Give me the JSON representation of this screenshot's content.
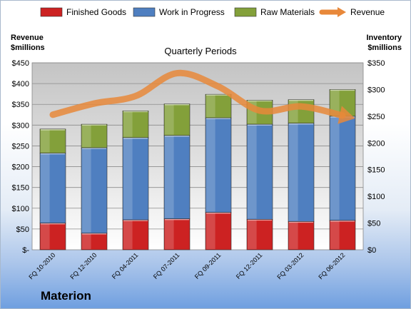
{
  "company": "Materion",
  "chart_data": {
    "type": "bar",
    "stacked": true,
    "subtitle": "Quarterly Periods",
    "y_left_label": [
      "Revenue",
      "$millions"
    ],
    "y_right_label": [
      "Inventory",
      "$millions"
    ],
    "categories": [
      "FQ 10-2010",
      "FQ 12-2010",
      "FQ 04-2011",
      "FQ 07-2011",
      "FQ 09-2011",
      "FQ 12-2011",
      "FQ 03-2012",
      "FQ 06-2012"
    ],
    "series": [
      {
        "name": "Finished Goods",
        "axis": "right",
        "color": "#cc2222",
        "values": [
          50,
          31,
          56,
          58,
          70,
          57,
          53,
          55
        ]
      },
      {
        "name": "Work in Progress",
        "axis": "right",
        "color": "#4f7fc0",
        "values": [
          131,
          160,
          154,
          156,
          177,
          178,
          184,
          195
        ]
      },
      {
        "name": "Raw Materials",
        "axis": "right",
        "color": "#83a03a",
        "values": [
          45,
          44,
          50,
          59,
          44,
          45,
          44,
          50
        ]
      },
      {
        "name": "Revenue",
        "axis": "left",
        "type": "line",
        "color": "#e8883a",
        "values": [
          325,
          352,
          370,
          425,
          393,
          335,
          345,
          323
        ]
      }
    ],
    "y_left": {
      "min": 0,
      "max": 450,
      "step": 50,
      "ticks": [
        "$-",
        "$50",
        "$100",
        "$150",
        "$200",
        "$250",
        "$300",
        "$350",
        "$400",
        "$450"
      ]
    },
    "y_right": {
      "min": 0,
      "max": 350,
      "step": 50,
      "ticks": [
        "$0",
        "$50",
        "$100",
        "$150",
        "$200",
        "$250",
        "$300",
        "$350"
      ]
    },
    "grid": true,
    "legend_position": "top"
  }
}
